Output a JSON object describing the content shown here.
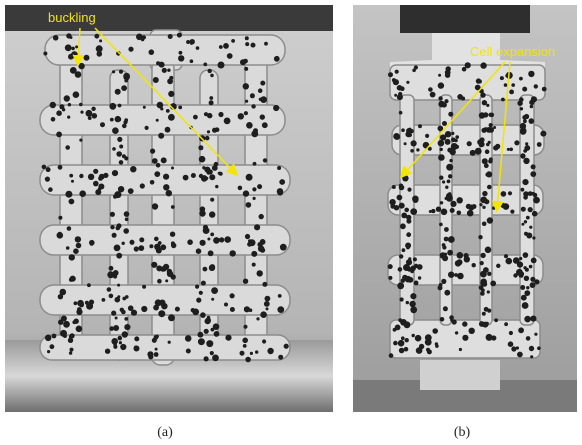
{
  "panels": [
    {
      "annotation": "buckling",
      "caption": "(a)"
    },
    {
      "annotation": "Cell expansion",
      "caption": "(b)"
    }
  ]
}
